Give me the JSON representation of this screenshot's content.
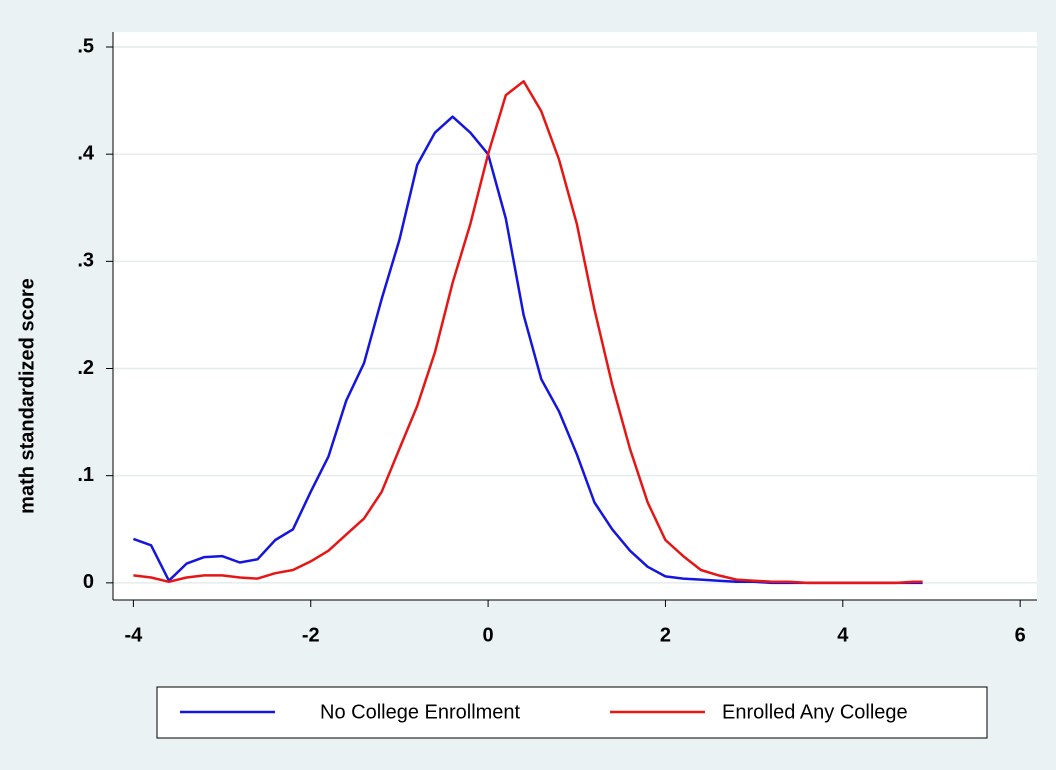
{
  "chart_data": {
    "type": "line",
    "ylabel": "math standardized score",
    "x": [
      -4.0,
      -3.8,
      -3.6,
      -3.4,
      -3.2,
      -3.0,
      -2.8,
      -2.6,
      -2.4,
      -2.2,
      -2.0,
      -1.8,
      -1.6,
      -1.4,
      -1.2,
      -1.0,
      -0.8,
      -0.6,
      -0.4,
      -0.2,
      0.0,
      0.2,
      0.4,
      0.6,
      0.8,
      1.0,
      1.2,
      1.4,
      1.6,
      1.8,
      2.0,
      2.2,
      2.4,
      2.6,
      2.8,
      3.0,
      3.2,
      3.4,
      3.6,
      3.8,
      4.0,
      4.2,
      4.4,
      4.6,
      4.8,
      4.9
    ],
    "series": [
      {
        "name": "No College Enrollment",
        "color": "#1515e0",
        "values": [
          0.041,
          0.035,
          0.002,
          0.018,
          0.024,
          0.025,
          0.019,
          0.022,
          0.04,
          0.05,
          0.085,
          0.118,
          0.17,
          0.205,
          0.265,
          0.32,
          0.39,
          0.42,
          0.435,
          0.42,
          0.4,
          0.34,
          0.25,
          0.19,
          0.16,
          0.12,
          0.075,
          0.05,
          0.03,
          0.015,
          0.006,
          0.004,
          0.003,
          0.002,
          0.001,
          0.001,
          0.0,
          0.0,
          0.0,
          0.0,
          0.0,
          0.0,
          0.0,
          0.0,
          0.0,
          0.0
        ]
      },
      {
        "name": "Enrolled Any College",
        "color": "#e81515",
        "values": [
          0.007,
          0.005,
          0.001,
          0.005,
          0.007,
          0.007,
          0.005,
          0.004,
          0.009,
          0.012,
          0.02,
          0.03,
          0.045,
          0.06,
          0.085,
          0.125,
          0.165,
          0.215,
          0.28,
          0.335,
          0.4,
          0.455,
          0.468,
          0.44,
          0.395,
          0.335,
          0.255,
          0.185,
          0.125,
          0.075,
          0.04,
          0.025,
          0.012,
          0.007,
          0.003,
          0.002,
          0.001,
          0.001,
          0.0,
          0.0,
          0.0,
          0.0,
          0.0,
          0.0,
          0.001,
          0.001
        ]
      }
    ],
    "xlim": [
      -4.23,
      6.19
    ],
    "ylim": [
      -0.016,
      0.514
    ],
    "xticks": [
      -4,
      -2,
      0,
      2,
      4,
      6
    ],
    "yticks": [
      0,
      {
        "value": 0.1,
        "label": ".1"
      },
      {
        "value": 0.2,
        "label": ".2"
      },
      {
        "value": 0.3,
        "label": ".3"
      },
      {
        "value": 0.4,
        "label": ".4"
      },
      {
        "value": 0.5,
        "label": ".5"
      }
    ],
    "grid": true,
    "legend": "bottom"
  }
}
